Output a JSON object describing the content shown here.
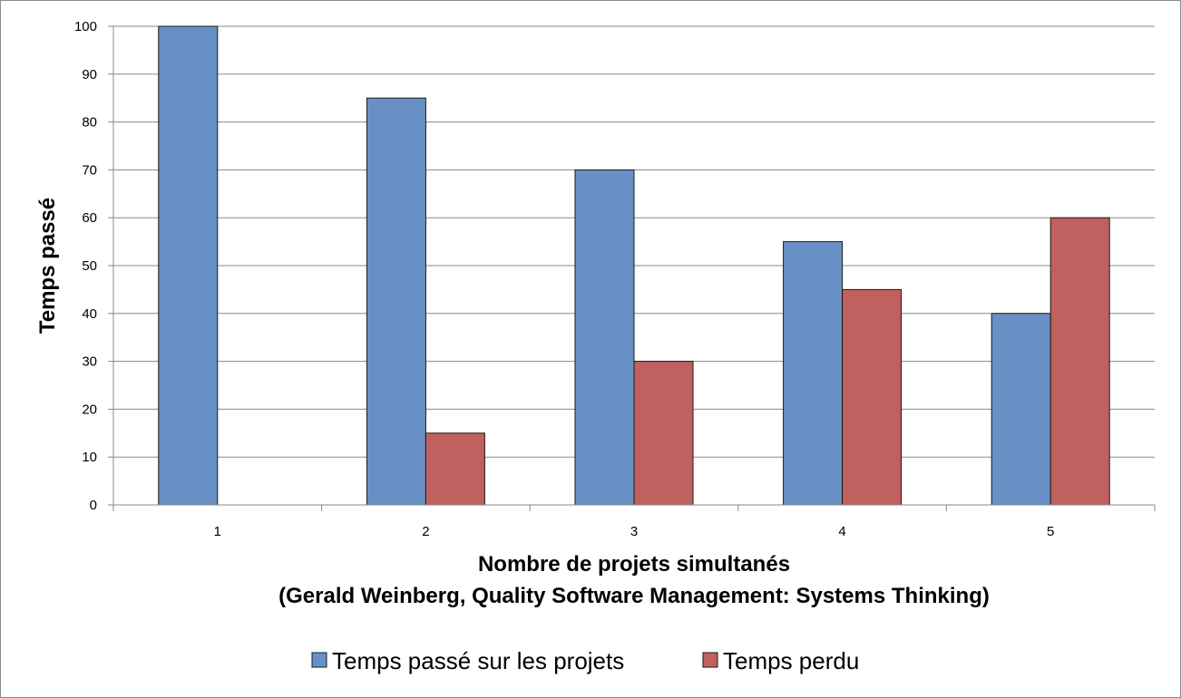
{
  "chart_data": {
    "type": "bar",
    "categories": [
      "1",
      "2",
      "3",
      "4",
      "5"
    ],
    "series": [
      {
        "name": "Temps passé sur les projets",
        "values": [
          100,
          85,
          70,
          55,
          40
        ],
        "color": "#6890c4"
      },
      {
        "name": "Temps perdu",
        "values": [
          0,
          15,
          30,
          45,
          60
        ],
        "color": "#c0605f"
      }
    ],
    "ylabel": "Temps passé",
    "xlabel_lines": [
      "Nombre de projets simultanés",
      "(Gerald Weinberg, Quality Software Management: Systems Thinking)"
    ],
    "ylim": [
      0,
      100
    ],
    "yticks": [
      0,
      10,
      20,
      30,
      40,
      50,
      60,
      70,
      80,
      90,
      100
    ],
    "grid": true,
    "legend_position": "bottom"
  }
}
